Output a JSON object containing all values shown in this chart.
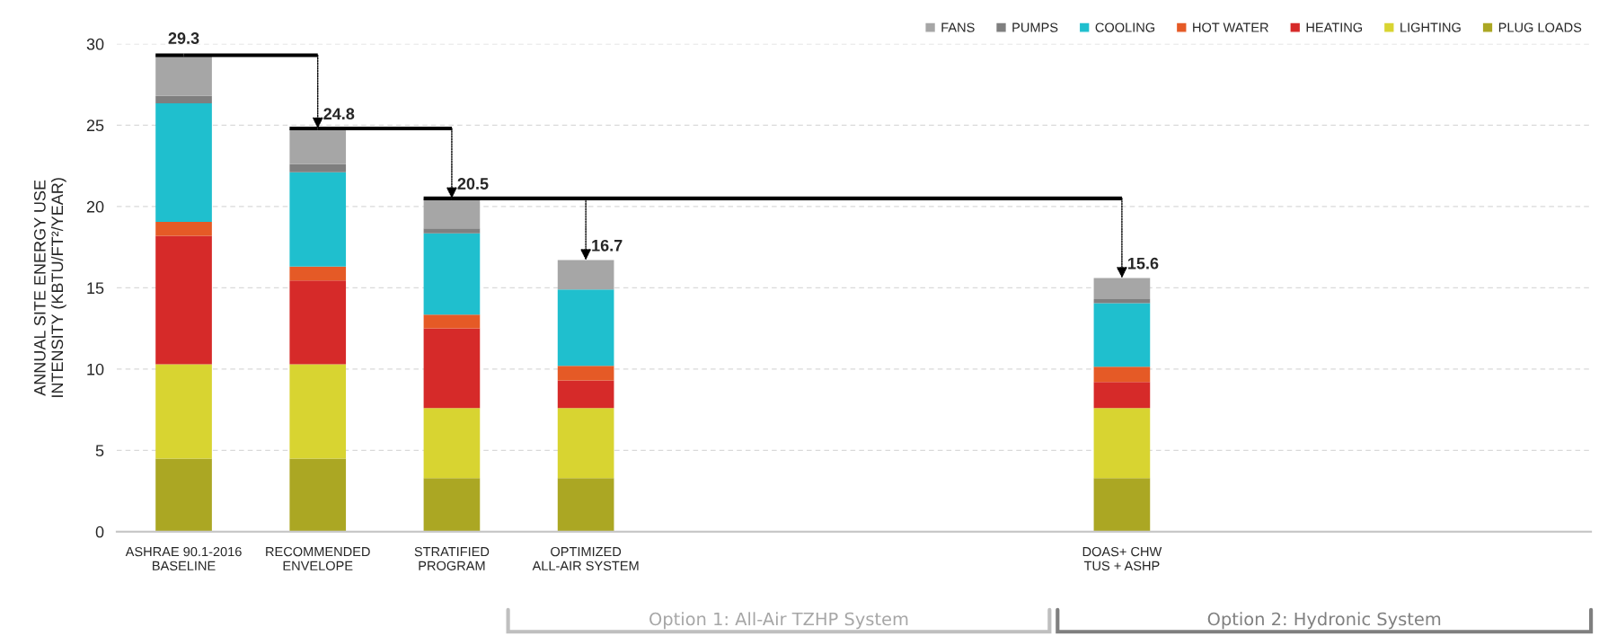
{
  "chart_data": {
    "type": "bar",
    "stacked": true,
    "ylabel": "ANNUAL SITE ENERGY USE\nINTENSITY (KBTU/FT²/YEAR)",
    "categories": [
      "ASHRAE 90.1-2016\nBASELINE",
      "RECOMMENDED\nENVELOPE",
      "STRATIFIED\nPROGRAM",
      "OPTIMIZED\nALL-AIR SYSTEM",
      null,
      null,
      null,
      "DOAS+ CHW\nTUS + ASHP",
      null,
      null,
      null
    ],
    "series": [
      {
        "name": "PLUG LOADS",
        "color": "#aba723",
        "values": [
          4.5,
          4.5,
          3.3,
          3.3,
          null,
          null,
          null,
          3.3,
          null,
          null,
          null
        ]
      },
      {
        "name": "LIGHTING",
        "color": "#d8d431",
        "values": [
          5.8,
          5.8,
          4.3,
          4.3,
          null,
          null,
          null,
          4.3,
          null,
          null,
          null
        ]
      },
      {
        "name": "HEATING",
        "color": "#d62a29",
        "values": [
          7.9,
          5.15,
          4.9,
          1.7,
          null,
          null,
          null,
          1.6,
          null,
          null,
          null
        ]
      },
      {
        "name": "HOT WATER",
        "color": "#e55a26",
        "values": [
          0.85,
          0.85,
          0.85,
          0.9,
          null,
          null,
          null,
          0.95,
          null,
          null,
          null
        ]
      },
      {
        "name": "COOLING",
        "color": "#1fbfce",
        "values": [
          7.3,
          5.8,
          5.0,
          4.7,
          null,
          null,
          null,
          3.9,
          null,
          null,
          null
        ]
      },
      {
        "name": "PUMPS",
        "color": "#7f7f7f",
        "values": [
          0.45,
          0.5,
          0.3,
          0,
          null,
          null,
          null,
          0.25,
          null,
          null,
          null
        ]
      },
      {
        "name": "FANS",
        "color": "#a6a6a6",
        "values": [
          2.5,
          2.2,
          1.85,
          1.8,
          null,
          null,
          null,
          1.3,
          null,
          null,
          null
        ]
      },
      {
        "type": "line",
        "color": "#000000",
        "values": [
          29.3,
          29.3,
          null,
          null,
          null,
          null,
          null,
          null,
          null,
          null,
          null
        ]
      },
      {
        "type": "line",
        "color": "#000000",
        "values": [
          null,
          24.8,
          24.8,
          null,
          null,
          null,
          null,
          null,
          null,
          null,
          null
        ]
      },
      {
        "type": "line",
        "color": "#000000",
        "values": [
          null,
          null,
          20.5,
          20.5,
          20.5,
          20.5,
          20.5,
          20.5,
          null,
          null,
          null
        ]
      }
    ],
    "totals": [
      "29.3",
      "24.8",
      "20.5",
      "16.7",
      null,
      null,
      null,
      "15.6",
      null,
      null,
      null
    ],
    "ylim": [
      0,
      30
    ],
    "yticks": [
      0,
      5,
      10,
      15,
      20,
      25,
      30
    ],
    "grid": "y",
    "legend": "top right",
    "annotations": [
      "Option 1: All-Air TZHP System",
      "Option 2: Hydronic System"
    ]
  }
}
